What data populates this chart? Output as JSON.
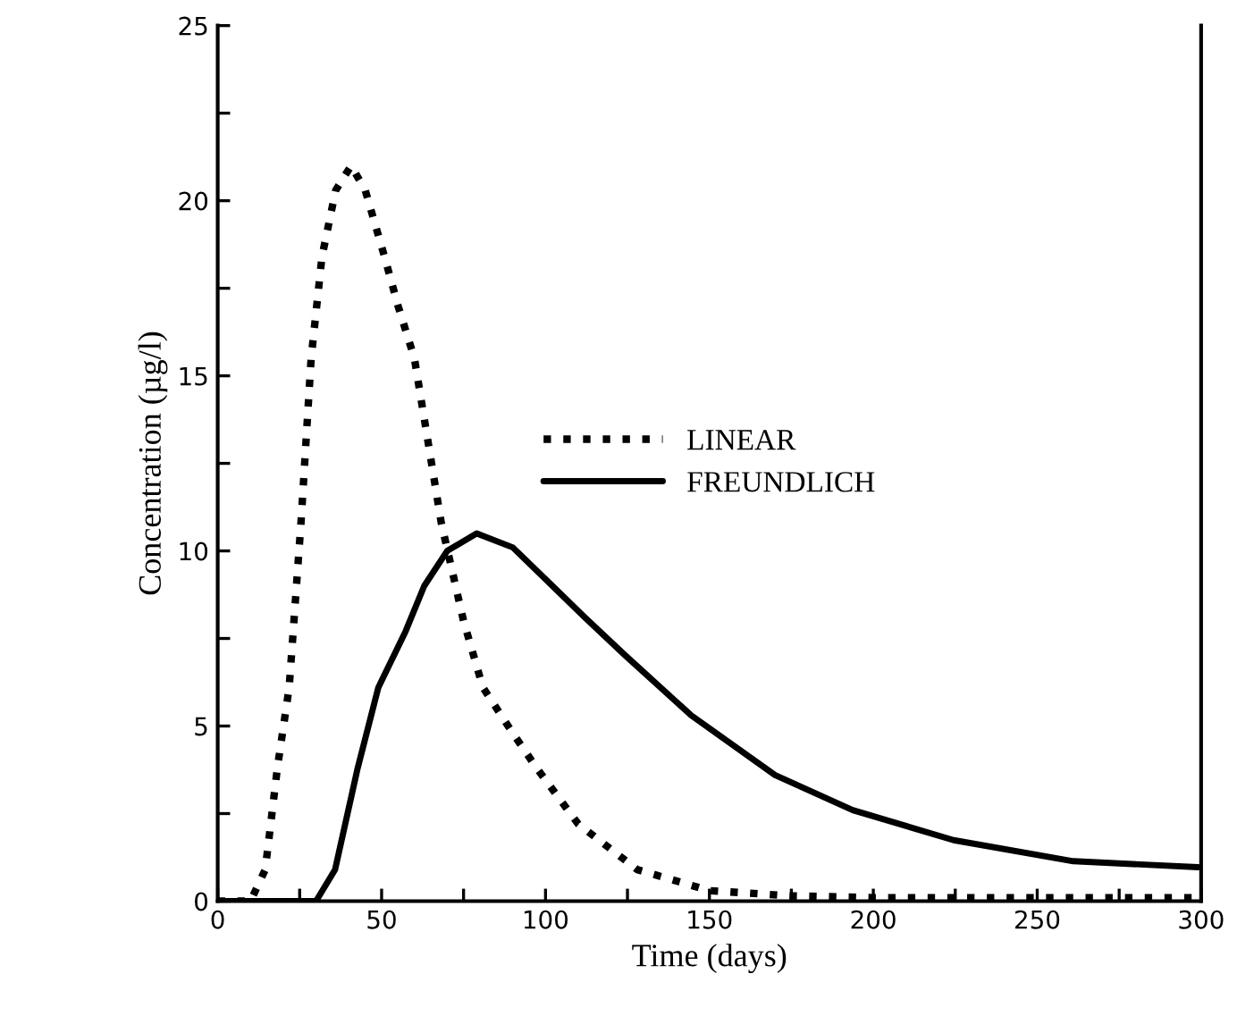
{
  "chart_data": {
    "type": "line",
    "xlabel": "Time (days)",
    "ylabel": "Concentration (µg/l)",
    "xlim": [
      0,
      300
    ],
    "ylim": [
      0,
      25
    ],
    "xticks": [
      0,
      {
        "value": 25,
        "label": null
      },
      50,
      {
        "value": 75,
        "label": null
      },
      100,
      {
        "value": 125,
        "label": null
      },
      150,
      {
        "value": 175,
        "label": null
      },
      200,
      {
        "value": 225,
        "label": null
      },
      250,
      {
        "value": 275,
        "label": null
      },
      300
    ],
    "yticks": [
      0,
      {
        "value": 2.5,
        "label": null
      },
      5,
      {
        "value": 7.5,
        "label": null
      },
      10,
      {
        "value": 12.5,
        "label": null
      },
      15,
      {
        "value": 17.5,
        "label": null
      },
      20,
      {
        "value": 22.5,
        "label": null
      },
      25
    ],
    "grid": false,
    "legend": "center",
    "marker": "none",
    "series": [
      {
        "name": "LINEAR",
        "color": "#000000",
        "line_style": "dotted",
        "x": [
          0,
          10,
          14.5,
          18.2,
          21.8,
          25.4,
          28.5,
          31.8,
          36,
          40.7,
          45,
          50.9,
          55,
          60,
          68.2,
          75,
          80.9,
          90,
          97.3,
          110,
          128,
          150,
          175,
          200,
          250,
          300
        ],
        "values": [
          0,
          0,
          0.9,
          3.8,
          6.1,
          10.8,
          15.5,
          18.4,
          20.3,
          21.0,
          20.3,
          18.4,
          17.0,
          15.5,
          10.8,
          8.0,
          6.1,
          4.8,
          3.8,
          2.2,
          0.9,
          0.3,
          0.15,
          0.1,
          0.1,
          0.1
        ]
      },
      {
        "name": "FREUNDLICH",
        "color": "#000000",
        "line_style": "solid",
        "x": [
          0,
          30,
          35.8,
          42.7,
          49,
          57.3,
          63,
          70,
          79,
          90,
          101,
          112,
          124.5,
          144.5,
          170,
          193.7,
          224.5,
          261,
          299
        ],
        "values": [
          0,
          0,
          0.9,
          3.8,
          6.1,
          7.7,
          9.0,
          10.0,
          10.5,
          10.1,
          9.1,
          8.1,
          7.0,
          5.3,
          3.6,
          2.6,
          1.74,
          1.14,
          0.97
        ]
      }
    ]
  }
}
